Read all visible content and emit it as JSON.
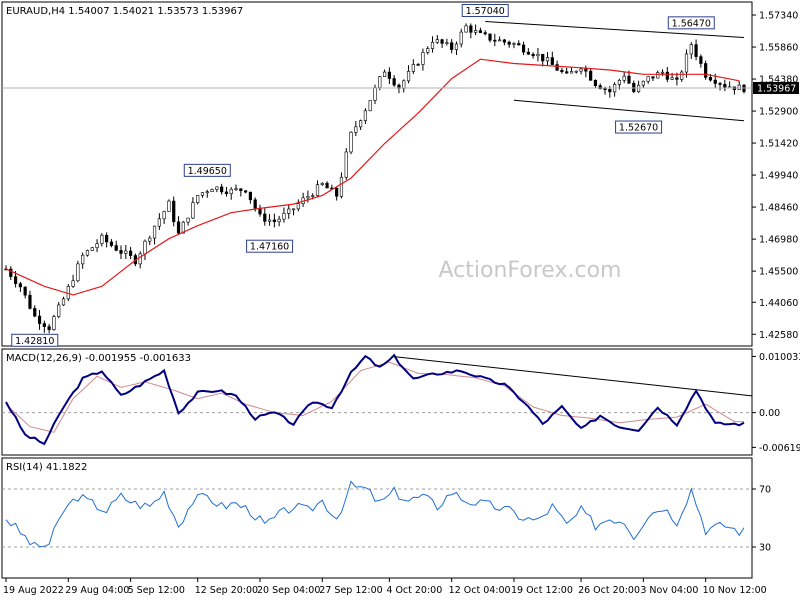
{
  "chart_data": {
    "type": "candlestick",
    "watermark": "ActionForex.com",
    "main": {
      "header": "EURAUD,H4  1.54007 1.54021 1.53573 1.53967",
      "yticks": [
        "1.57340",
        "1.55860",
        "1.54380",
        "1.52900",
        "1.51420",
        "1.49940",
        "1.48460",
        "1.46980",
        "1.45500",
        "1.44060",
        "1.42580"
      ],
      "ylim": [
        1.4213,
        1.5785
      ],
      "last_price": "1.53967",
      "annotations": [
        {
          "label": "1.42810",
          "idx": 6,
          "value": 1.4281
        },
        {
          "label": "1.49650",
          "idx": 42,
          "value": 1.4965
        },
        {
          "label": "1.47160",
          "idx": 55,
          "value": 1.4716
        },
        {
          "label": "1.57040",
          "idx": 100,
          "value": 1.5704
        },
        {
          "label": "1.52670",
          "idx": 132,
          "value": 1.5267
        },
        {
          "label": "1.56470",
          "idx": 143,
          "value": 1.5647
        }
      ],
      "trendlines": [
        {
          "from": [
            100,
            1.5704
          ],
          "to": [
            154,
            1.563
          ]
        },
        {
          "from": [
            106,
            1.534
          ],
          "to": [
            154,
            1.5245
          ]
        }
      ],
      "close_path": [
        [
          0,
          1.456
        ],
        [
          3,
          1.448
        ],
        [
          6,
          1.434
        ],
        [
          9,
          1.429
        ],
        [
          12,
          1.442
        ],
        [
          16,
          1.462
        ],
        [
          20,
          1.47
        ],
        [
          24,
          1.464
        ],
        [
          27,
          1.46
        ],
        [
          31,
          1.476
        ],
        [
          34,
          1.486
        ],
        [
          36,
          1.472
        ],
        [
          40,
          1.49
        ],
        [
          43,
          1.494
        ],
        [
          47,
          1.492
        ],
        [
          50,
          1.493
        ],
        [
          53,
          1.48
        ],
        [
          56,
          1.478
        ],
        [
          59,
          1.482
        ],
        [
          62,
          1.488
        ],
        [
          66,
          1.495
        ],
        [
          69,
          1.49
        ],
        [
          72,
          1.518
        ],
        [
          75,
          1.53
        ],
        [
          79,
          1.548
        ],
        [
          82,
          1.54
        ],
        [
          86,
          1.552
        ],
        [
          89,
          1.562
        ],
        [
          93,
          1.558
        ],
        [
          96,
          1.568
        ],
        [
          99,
          1.564
        ],
        [
          102,
          1.562
        ],
        [
          106,
          1.56
        ],
        [
          110,
          1.556
        ],
        [
          113,
          1.552
        ],
        [
          117,
          1.545
        ],
        [
          120,
          1.55
        ],
        [
          123,
          1.542
        ],
        [
          126,
          1.538
        ],
        [
          129,
          1.546
        ],
        [
          131,
          1.538
        ],
        [
          134,
          1.544
        ],
        [
          137,
          1.547
        ],
        [
          140,
          1.542
        ],
        [
          143,
          1.56
        ],
        [
          146,
          1.546
        ],
        [
          150,
          1.541
        ],
        [
          153,
          1.5397
        ]
      ],
      "ma_path": [
        [
          0,
          1.456
        ],
        [
          8,
          1.448
        ],
        [
          14,
          1.444
        ],
        [
          20,
          1.448
        ],
        [
          27,
          1.46
        ],
        [
          34,
          1.47
        ],
        [
          40,
          1.476
        ],
        [
          47,
          1.482
        ],
        [
          53,
          1.484
        ],
        [
          60,
          1.486
        ],
        [
          66,
          1.49
        ],
        [
          72,
          1.498
        ],
        [
          79,
          1.514
        ],
        [
          86,
          1.528
        ],
        [
          93,
          1.544
        ],
        [
          99,
          1.553
        ],
        [
          106,
          1.551
        ],
        [
          113,
          1.55
        ],
        [
          120,
          1.549
        ],
        [
          126,
          1.548
        ],
        [
          133,
          1.546
        ],
        [
          140,
          1.546
        ],
        [
          146,
          1.546
        ],
        [
          153,
          1.543
        ]
      ]
    },
    "macd": {
      "label": "MACD(12,26,9) -0.001955 -0.001633",
      "yticks": [
        "0.010033",
        "0.00",
        "-0.006193"
      ],
      "ylim": [
        -0.0072,
        0.011
      ],
      "main_path": [
        [
          0,
          0.002
        ],
        [
          4,
          -0.004
        ],
        [
          8,
          -0.0055
        ],
        [
          12,
          0.001
        ],
        [
          16,
          0.006
        ],
        [
          20,
          0.0075
        ],
        [
          24,
          0.003
        ],
        [
          28,
          0.005
        ],
        [
          33,
          0.0075
        ],
        [
          36,
          0.0
        ],
        [
          40,
          0.0035
        ],
        [
          44,
          0.004
        ],
        [
          48,
          0.003
        ],
        [
          52,
          -0.001
        ],
        [
          56,
          0.0
        ],
        [
          60,
          -0.002
        ],
        [
          64,
          0.002
        ],
        [
          68,
          0.001
        ],
        [
          72,
          0.007
        ],
        [
          75,
          0.01
        ],
        [
          78,
          0.008
        ],
        [
          81,
          0.01
        ],
        [
          85,
          0.006
        ],
        [
          90,
          0.007
        ],
        [
          95,
          0.0075
        ],
        [
          100,
          0.006
        ],
        [
          104,
          0.005
        ],
        [
          108,
          0.002
        ],
        [
          112,
          -0.002
        ],
        [
          116,
          0.001
        ],
        [
          120,
          -0.003
        ],
        [
          124,
          -0.0005
        ],
        [
          128,
          -0.0025
        ],
        [
          132,
          -0.003
        ],
        [
          136,
          0.001
        ],
        [
          140,
          -0.002
        ],
        [
          144,
          0.004
        ],
        [
          148,
          -0.002
        ],
        [
          152,
          -0.002
        ]
      ],
      "signal_path": [
        [
          0,
          0.0015
        ],
        [
          5,
          -0.0025
        ],
        [
          10,
          -0.0035
        ],
        [
          14,
          0.0025
        ],
        [
          19,
          0.0065
        ],
        [
          24,
          0.0045
        ],
        [
          29,
          0.0055
        ],
        [
          35,
          0.004
        ],
        [
          40,
          0.0025
        ],
        [
          45,
          0.0035
        ],
        [
          50,
          0.0015
        ],
        [
          56,
          0.0
        ],
        [
          62,
          -0.0005
        ],
        [
          68,
          0.002
        ],
        [
          74,
          0.0075
        ],
        [
          80,
          0.009
        ],
        [
          86,
          0.007
        ],
        [
          92,
          0.0068
        ],
        [
          98,
          0.0062
        ],
        [
          104,
          0.0048
        ],
        [
          110,
          0.001
        ],
        [
          116,
          -0.0005
        ],
        [
          122,
          -0.001
        ],
        [
          128,
          -0.0018
        ],
        [
          134,
          -0.0012
        ],
        [
          140,
          -0.0008
        ],
        [
          146,
          0.0015
        ],
        [
          152,
          -0.0016
        ]
      ],
      "trendline": {
        "from": [
          81,
          0.01
        ],
        "to": [
          154,
          0.003
        ]
      }
    },
    "rsi": {
      "label": "RSI(14) 41.1822",
      "yticks": [
        "70",
        "30"
      ],
      "levels": [
        70,
        30
      ],
      "ylim": [
        10,
        90
      ],
      "path": [
        [
          0,
          50
        ],
        [
          3,
          40
        ],
        [
          6,
          30
        ],
        [
          9,
          32
        ],
        [
          12,
          55
        ],
        [
          15,
          65
        ],
        [
          18,
          60
        ],
        [
          21,
          55
        ],
        [
          24,
          65
        ],
        [
          27,
          60
        ],
        [
          30,
          58
        ],
        [
          33,
          68
        ],
        [
          36,
          45
        ],
        [
          39,
          62
        ],
        [
          42,
          65
        ],
        [
          45,
          58
        ],
        [
          48,
          60
        ],
        [
          51,
          55
        ],
        [
          54,
          45
        ],
        [
          57,
          52
        ],
        [
          60,
          58
        ],
        [
          63,
          55
        ],
        [
          66,
          62
        ],
        [
          69,
          50
        ],
        [
          72,
          72
        ],
        [
          75,
          70
        ],
        [
          78,
          60
        ],
        [
          81,
          68
        ],
        [
          84,
          62
        ],
        [
          87,
          65
        ],
        [
          90,
          58
        ],
        [
          93,
          68
        ],
        [
          96,
          62
        ],
        [
          99,
          60
        ],
        [
          102,
          58
        ],
        [
          105,
          55
        ],
        [
          108,
          50
        ],
        [
          111,
          48
        ],
        [
          114,
          58
        ],
        [
          117,
          45
        ],
        [
          120,
          55
        ],
        [
          123,
          45
        ],
        [
          126,
          50
        ],
        [
          129,
          48
        ],
        [
          131,
          38
        ],
        [
          134,
          52
        ],
        [
          137,
          58
        ],
        [
          140,
          48
        ],
        [
          143,
          70
        ],
        [
          146,
          42
        ],
        [
          150,
          45
        ],
        [
          153,
          41
        ]
      ]
    },
    "xlabels": [
      "19 Aug 2022",
      "29 Aug 04:00",
      "5 Sep 12:00",
      "12 Sep 20:00",
      "20 Sep 04:00",
      "27 Sep 12:00",
      "4 Oct 20:00",
      "12 Oct 04:00",
      "19 Oct 12:00",
      "26 Oct 20:00",
      "3 Nov 04:00",
      "10 Nov 12:00"
    ],
    "xlabel_idx": [
      0,
      13,
      26,
      40,
      53,
      66,
      80,
      93,
      106,
      120,
      133,
      146
    ],
    "n_bars": 155,
    "colors": {
      "candle": "#000000",
      "ma": "#e31a1c",
      "macd": "#000080",
      "signal": "#d08a8a",
      "rsi": "#1f6fd6",
      "trend": "#000000",
      "grid": "#a0a0a0"
    }
  }
}
